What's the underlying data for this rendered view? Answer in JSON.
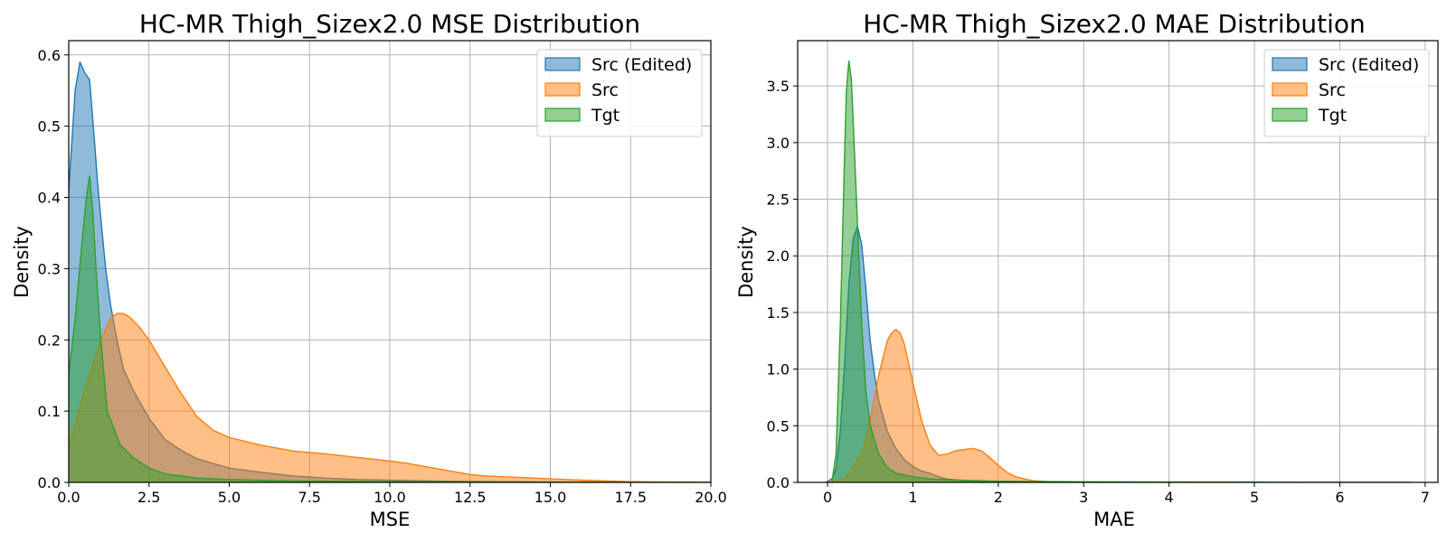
{
  "chart_data": [
    {
      "type": "area",
      "title": "HC-MR Thigh_Sizex2.0 MSE Distribution",
      "xlabel": "MSE",
      "ylabel": "Density",
      "xlim": [
        0,
        20
      ],
      "ylim": [
        0,
        0.62
      ],
      "xticks": [
        0,
        2.5,
        5,
        7.5,
        10,
        12.5,
        15,
        17.5,
        20
      ],
      "xtick_labels": [
        "0.0",
        "2.5",
        "5.0",
        "7.5",
        "10.0",
        "12.5",
        "15.0",
        "17.5",
        "20.0"
      ],
      "yticks": [
        0,
        0.1,
        0.2,
        0.3,
        0.4,
        0.5,
        0.6
      ],
      "ytick_labels": [
        "0.0",
        "0.1",
        "0.2",
        "0.3",
        "0.4",
        "0.5",
        "0.6"
      ],
      "grid": true,
      "legend_position": "upper-right",
      "series": [
        {
          "name": "Src (Edited)",
          "color": "#1f77b4",
          "x": [
            0,
            0.1,
            0.2,
            0.35,
            0.5,
            0.65,
            0.8,
            0.9,
            1.0,
            1.15,
            1.3,
            1.5,
            1.7,
            2.0,
            2.5,
            3.0,
            3.5,
            4.0,
            5.0,
            6.0,
            7.0,
            8.0,
            9.0,
            10.0,
            12.0,
            15.0,
            20.0
          ],
          "y": [
            0.41,
            0.48,
            0.55,
            0.59,
            0.575,
            0.565,
            0.48,
            0.42,
            0.37,
            0.3,
            0.25,
            0.2,
            0.16,
            0.13,
            0.09,
            0.06,
            0.045,
            0.033,
            0.02,
            0.014,
            0.009,
            0.006,
            0.004,
            0.003,
            0.0015,
            0.0005,
            0.0
          ]
        },
        {
          "name": "Src",
          "color": "#ff7f0e",
          "x": [
            0,
            0.5,
            1.0,
            1.3,
            1.5,
            1.7,
            1.9,
            2.2,
            2.5,
            3.0,
            3.5,
            4.0,
            4.5,
            5.0,
            6.0,
            7.0,
            8.0,
            9.0,
            10.0,
            10.5,
            11.0,
            12.0,
            12.5,
            13.0,
            14.0,
            15.0,
            16.0,
            17.5,
            20.0
          ],
          "y": [
            0.05,
            0.13,
            0.2,
            0.23,
            0.237,
            0.237,
            0.232,
            0.218,
            0.2,
            0.162,
            0.125,
            0.092,
            0.073,
            0.063,
            0.052,
            0.044,
            0.04,
            0.035,
            0.03,
            0.027,
            0.023,
            0.015,
            0.011,
            0.009,
            0.007,
            0.005,
            0.003,
            0.001,
            0.0
          ]
        },
        {
          "name": "Tgt",
          "color": "#2ca02c",
          "x": [
            0,
            0.2,
            0.4,
            0.55,
            0.65,
            0.75,
            0.85,
            1.0,
            1.2,
            1.6,
            2.0,
            2.5,
            3.0,
            4.0,
            5.0,
            7.0,
            10.0,
            15.0,
            20.0
          ],
          "y": [
            0.15,
            0.23,
            0.33,
            0.4,
            0.43,
            0.38,
            0.3,
            0.2,
            0.1,
            0.053,
            0.035,
            0.02,
            0.012,
            0.006,
            0.004,
            0.002,
            0.001,
            0.0003,
            0.0
          ]
        }
      ]
    },
    {
      "type": "area",
      "title": "HC-MR Thigh_Sizex2.0 MAE Distribution",
      "xlabel": "MAE",
      "ylabel": "Density",
      "xlim": [
        -0.35,
        7.15
      ],
      "ylim": [
        0,
        3.9
      ],
      "xticks": [
        0,
        1,
        2,
        3,
        4,
        5,
        6,
        7
      ],
      "xtick_labels": [
        "0",
        "1",
        "2",
        "3",
        "4",
        "5",
        "6",
        "7"
      ],
      "yticks": [
        0,
        0.5,
        1.0,
        1.5,
        2.0,
        2.5,
        3.0,
        3.5
      ],
      "ytick_labels": [
        "0.0",
        "0.5",
        "1.0",
        "1.5",
        "2.0",
        "2.5",
        "3.0",
        "3.5"
      ],
      "grid": true,
      "legend_position": "upper-right",
      "series": [
        {
          "name": "Src (Edited)",
          "color": "#1f77b4",
          "x": [
            -0.02,
            0.05,
            0.1,
            0.15,
            0.2,
            0.25,
            0.3,
            0.35,
            0.4,
            0.45,
            0.5,
            0.55,
            0.6,
            0.7,
            0.8,
            0.9,
            1.0,
            1.1,
            1.2,
            1.3,
            1.4,
            1.6,
            2.0,
            2.5,
            3.0
          ],
          "y": [
            0.0,
            0.03,
            0.12,
            0.45,
            1.05,
            1.75,
            2.15,
            2.26,
            2.1,
            1.7,
            1.25,
            0.95,
            0.72,
            0.45,
            0.3,
            0.2,
            0.14,
            0.1,
            0.08,
            0.05,
            0.03,
            0.015,
            0.005,
            0.001,
            0.0
          ]
        },
        {
          "name": "Src",
          "color": "#ff7f0e",
          "x": [
            0.0,
            0.2,
            0.4,
            0.5,
            0.6,
            0.7,
            0.75,
            0.8,
            0.85,
            0.9,
            1.0,
            1.1,
            1.2,
            1.3,
            1.4,
            1.5,
            1.6,
            1.7,
            1.8,
            1.9,
            2.0,
            2.1,
            2.2,
            2.4,
            2.6,
            3.0
          ],
          "y": [
            0.0,
            0.03,
            0.25,
            0.55,
            0.95,
            1.25,
            1.32,
            1.35,
            1.32,
            1.22,
            0.88,
            0.55,
            0.33,
            0.24,
            0.25,
            0.28,
            0.29,
            0.3,
            0.28,
            0.22,
            0.15,
            0.09,
            0.05,
            0.015,
            0.005,
            0.0
          ]
        },
        {
          "name": "Tgt",
          "color": "#2ca02c",
          "x": [
            0.05,
            0.1,
            0.15,
            0.2,
            0.22,
            0.25,
            0.28,
            0.3,
            0.35,
            0.4,
            0.45,
            0.5,
            0.6,
            0.7,
            0.8,
            1.0,
            1.2,
            1.5,
            2.0,
            3.0,
            5.0,
            6.83
          ],
          "y": [
            0.0,
            0.25,
            1.4,
            2.9,
            3.45,
            3.72,
            3.55,
            3.2,
            2.3,
            1.4,
            0.8,
            0.5,
            0.25,
            0.13,
            0.08,
            0.05,
            0.03,
            0.02,
            0.01,
            0.005,
            0.002,
            0.0
          ]
        }
      ]
    }
  ]
}
